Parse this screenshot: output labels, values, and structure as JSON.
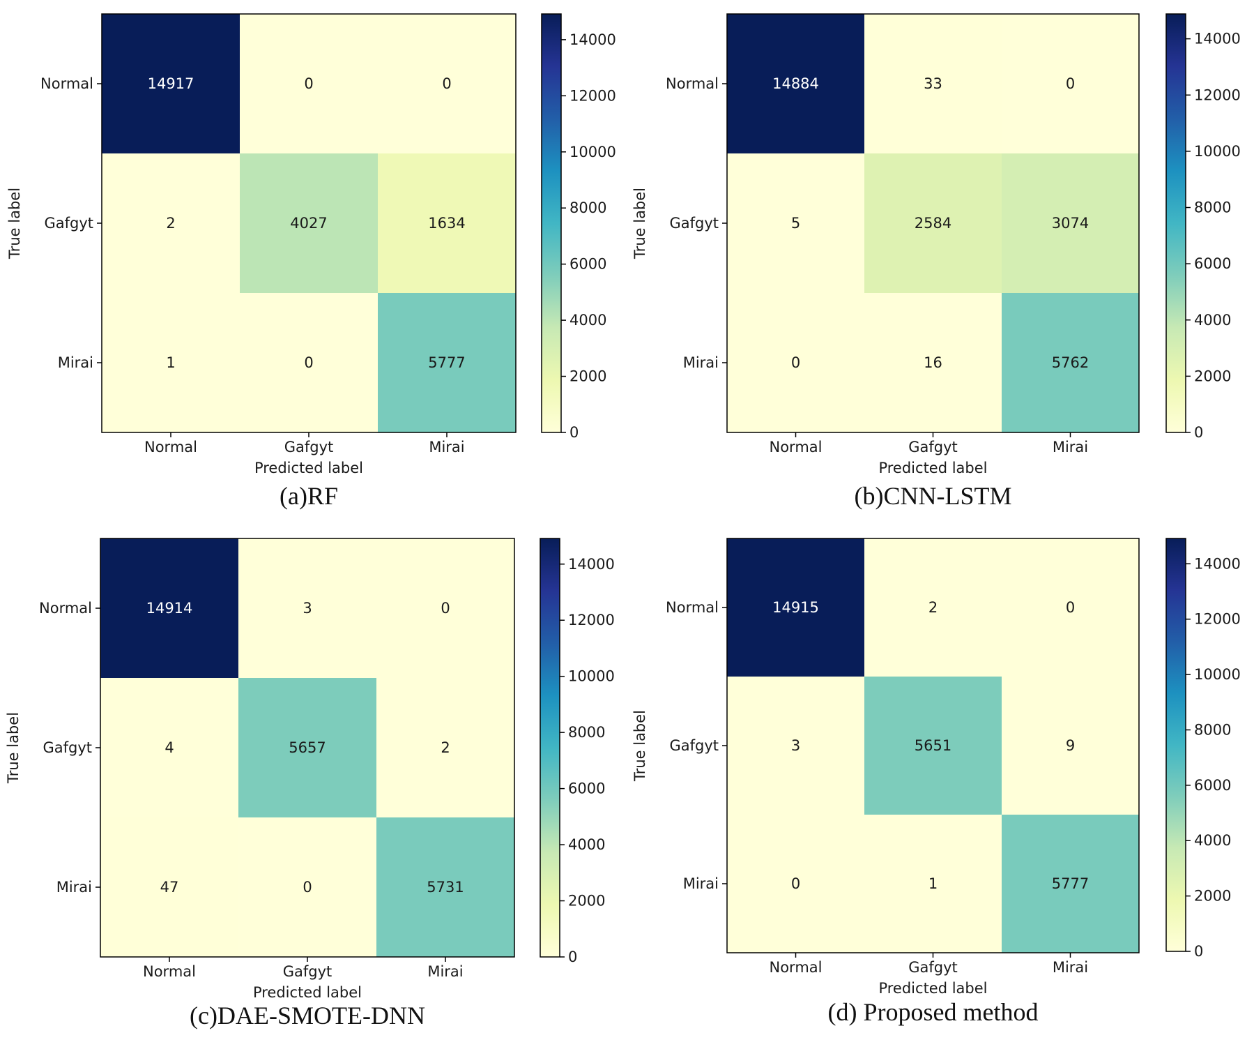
{
  "chart_data": [
    {
      "type": "heatmap",
      "caption": "(a)RF",
      "row_labels": [
        "Normal",
        "Gafgyt",
        "Mirai"
      ],
      "col_labels": [
        "Normal",
        "Gafgyt",
        "Mirai"
      ],
      "matrix": [
        [
          14917,
          0,
          0
        ],
        [
          2,
          4027,
          1634
        ],
        [
          1,
          0,
          5777
        ]
      ],
      "xlabel": "Predicted label",
      "ylabel": "True label",
      "colorbar_ticks": [
        0,
        2000,
        4000,
        6000,
        8000,
        10000,
        12000,
        14000
      ],
      "colorbar_range": [
        0,
        14917
      ],
      "colormap": "YlGnBu"
    },
    {
      "type": "heatmap",
      "caption": "(b)CNN-LSTM",
      "row_labels": [
        "Normal",
        "Gafgyt",
        "Mirai"
      ],
      "col_labels": [
        "Normal",
        "Gafgyt",
        "Mirai"
      ],
      "matrix": [
        [
          14884,
          33,
          0
        ],
        [
          5,
          2584,
          3074
        ],
        [
          0,
          16,
          5762
        ]
      ],
      "xlabel": "Predicted label",
      "ylabel": "True label",
      "colorbar_ticks": [
        0,
        2000,
        4000,
        6000,
        8000,
        10000,
        12000,
        14000
      ],
      "colorbar_range": [
        0,
        14884
      ],
      "colormap": "YlGnBu"
    },
    {
      "type": "heatmap",
      "caption": "(c)DAE-SMOTE-DNN",
      "row_labels": [
        "Normal",
        "Gafgyt",
        "Mirai"
      ],
      "col_labels": [
        "Normal",
        "Gafgyt",
        "Mirai"
      ],
      "matrix": [
        [
          14914,
          3,
          0
        ],
        [
          4,
          5657,
          2
        ],
        [
          47,
          0,
          5731
        ]
      ],
      "xlabel": "Predicted label",
      "ylabel": "True label",
      "colorbar_ticks": [
        0,
        2000,
        4000,
        6000,
        8000,
        10000,
        12000,
        14000
      ],
      "colorbar_range": [
        0,
        14914
      ],
      "colormap": "YlGnBu"
    },
    {
      "type": "heatmap",
      "caption": "(d) Proposed method",
      "row_labels": [
        "Normal",
        "Gafgyt",
        "Mirai"
      ],
      "col_labels": [
        "Normal",
        "Gafgyt",
        "Mirai"
      ],
      "matrix": [
        [
          14915,
          2,
          0
        ],
        [
          3,
          5651,
          9
        ],
        [
          0,
          1,
          5777
        ]
      ],
      "xlabel": "Predicted label",
      "ylabel": "True label",
      "colorbar_ticks": [
        0,
        2000,
        4000,
        6000,
        8000,
        10000,
        12000,
        14000
      ],
      "colorbar_range": [
        0,
        14915
      ],
      "colormap": "YlGnBu"
    }
  ]
}
